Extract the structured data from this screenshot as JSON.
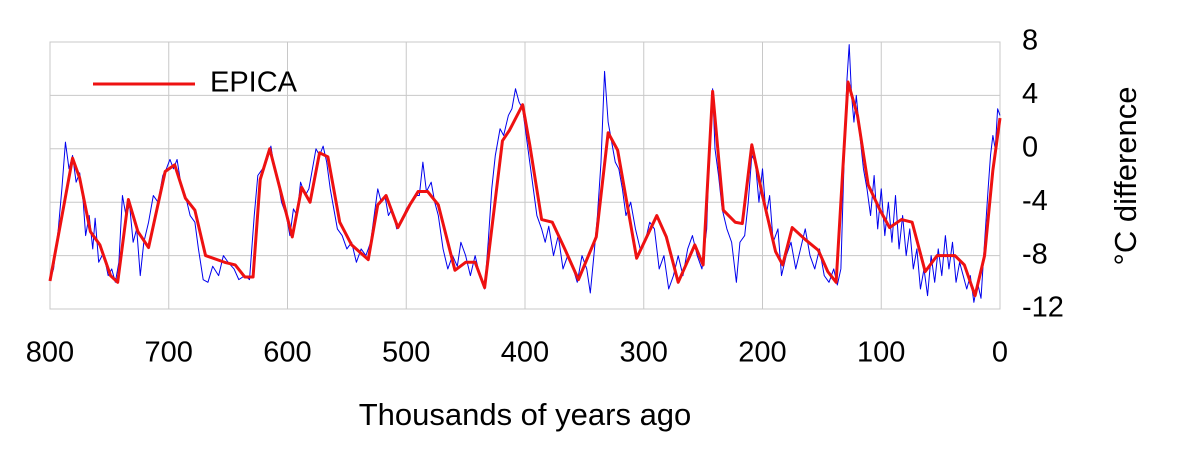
{
  "chart_data": {
    "type": "line",
    "xlabel": "Thousands of years ago",
    "ylabel": "°C difference",
    "xlim": [
      800,
      0
    ],
    "xticks": [
      800,
      700,
      600,
      500,
      400,
      300,
      200,
      100,
      0
    ],
    "ylim": [
      -12,
      8
    ],
    "yticks": [
      -12,
      -8,
      -4,
      0,
      4,
      8
    ],
    "grid": true,
    "legend": "upper left",
    "y_axis_side": "right",
    "series": [
      {
        "color": "#0000ee",
        "width": 1,
        "x": [
          800,
          797,
          793,
          790,
          787,
          784,
          781,
          778,
          775,
          772,
          770,
          767,
          764,
          762,
          759,
          755,
          751,
          748,
          745,
          742,
          739,
          736,
          733,
          730,
          727,
          724,
          721,
          717,
          713,
          709,
          705,
          702,
          699,
          696,
          693,
          690,
          686,
          682,
          678,
          675,
          671,
          667,
          663,
          658,
          654,
          650,
          645,
          641,
          636,
          632,
          628,
          625,
          621,
          617,
          614,
          611,
          608,
          605,
          601,
          598,
          595,
          592,
          589,
          585,
          582,
          579,
          576,
          573,
          570,
          567,
          564,
          561,
          558,
          554,
          550,
          546,
          542,
          538,
          534,
          530,
          527,
          524,
          521,
          518,
          515,
          512,
          508,
          504,
          500,
          496,
          492,
          489,
          486,
          483,
          479,
          476,
          473,
          469,
          465,
          461,
          457,
          454,
          450,
          446,
          442,
          438,
          434,
          431,
          428,
          425,
          421,
          418,
          414,
          411,
          408,
          405,
          402,
          399,
          396,
          393,
          390,
          386,
          383,
          380,
          376,
          372,
          368,
          364,
          360,
          356,
          352,
          348,
          345,
          342,
          339,
          336,
          333,
          330,
          327,
          324,
          321,
          318,
          315,
          311,
          307,
          303,
          299,
          295,
          291,
          287,
          283,
          279,
          275,
          271,
          267,
          263,
          259,
          255,
          251,
          247,
          244,
          242,
          240,
          237,
          234,
          230,
          226,
          222,
          219,
          215,
          212,
          209,
          206,
          203,
          200,
          197,
          194,
          191,
          187,
          184,
          180,
          176,
          172,
          168,
          164,
          160,
          156,
          152,
          148,
          144,
          140,
          137,
          134,
          131,
          129,
          127,
          125,
          123,
          121,
          118,
          115,
          112,
          109,
          106,
          103,
          100,
          97,
          94,
          91,
          88,
          85,
          82,
          79,
          76,
          73,
          70,
          67,
          64,
          61,
          58,
          55,
          52,
          49,
          46,
          43,
          40,
          37,
          34,
          31,
          28,
          25,
          22,
          19,
          16,
          13,
          10,
          8,
          6,
          4,
          2,
          0
        ],
        "values": [
          -9.8,
          -9,
          -6,
          -3,
          0.5,
          -1.5,
          -0.5,
          -2.5,
          -1.8,
          -4,
          -6.5,
          -5,
          -7.5,
          -5.2,
          -8.5,
          -7.8,
          -9.5,
          -9,
          -10,
          -8.5,
          -3.5,
          -5,
          -4.2,
          -7,
          -6,
          -9.5,
          -7,
          -5.5,
          -3.5,
          -4,
          -2,
          -1.5,
          -0.8,
          -1.5,
          -0.8,
          -2.5,
          -3.5,
          -5,
          -5.5,
          -7.5,
          -9.8,
          -10,
          -8.8,
          -9.5,
          -8,
          -8.5,
          -9,
          -9.8,
          -9.5,
          -9.8,
          -5,
          -2,
          -1.5,
          -0.8,
          0.2,
          -1.5,
          -2.5,
          -4,
          -5,
          -6.5,
          -4.5,
          -5,
          -2.5,
          -3.5,
          -3,
          -1.5,
          0,
          -0.5,
          0.2,
          -1,
          -3,
          -4.5,
          -6,
          -6.5,
          -7.5,
          -7,
          -8.5,
          -7.5,
          -8,
          -7,
          -5,
          -3,
          -4,
          -3.5,
          -5,
          -4.5,
          -6,
          -5.5,
          -4.5,
          -4,
          -3.5,
          -3.5,
          -1,
          -3.2,
          -2.5,
          -4,
          -5,
          -7.5,
          -9,
          -8,
          -8.8,
          -7,
          -8,
          -9.5,
          -8,
          -9.5,
          -10.5,
          -7,
          -3,
          -0.5,
          1.5,
          1,
          2.5,
          3,
          4.5,
          3.5,
          3,
          1,
          -1,
          -3,
          -5,
          -6,
          -7,
          -5.8,
          -8,
          -6.5,
          -9,
          -8,
          -8.8,
          -10,
          -8,
          -9,
          -10.8,
          -8,
          -5,
          -1,
          5.8,
          2,
          0.5,
          -1,
          -1.5,
          -3,
          -5,
          -4,
          -6,
          -7.5,
          -7,
          -5.5,
          -6,
          -9,
          -8,
          -10.5,
          -9.5,
          -8,
          -9.5,
          -7.5,
          -6.5,
          -8,
          -9,
          -6,
          2,
          4.5,
          0,
          -2,
          -4.5,
          -6,
          -7,
          -10,
          -7,
          -6.5,
          -4,
          -0.5,
          -1,
          -4,
          -1.5,
          -5,
          -3.5,
          -7,
          -6,
          -9.5,
          -8,
          -7,
          -9,
          -7.5,
          -6,
          -8,
          -9,
          -7.5,
          -9.5,
          -10,
          -9,
          -10.2,
          -9,
          0,
          5,
          7.8,
          4,
          2,
          4,
          1,
          -1.5,
          -3,
          -5,
          -2,
          -6,
          -3,
          -6.5,
          -4,
          -7,
          -3.5,
          -7.5,
          -5,
          -8,
          -6,
          -9,
          -7.5,
          -10.5,
          -9,
          -11,
          -8,
          -10,
          -7.5,
          -9.5,
          -6.5,
          -9,
          -7,
          -10,
          -8.5,
          -9.5,
          -10.5,
          -9.5,
          -11.5,
          -10,
          -11.2,
          -7,
          -3,
          -0.5,
          1,
          0,
          3,
          2.5
        ]
      },
      {
        "name": "EPICA",
        "color": "#ee1111",
        "width": 3,
        "x": [
          800,
          781,
          775,
          766,
          758,
          749,
          743,
          734,
          726,
          717,
          703,
          695,
          686,
          678,
          669,
          653,
          644,
          636,
          629,
          623,
          615,
          606,
          596,
          588,
          581,
          573,
          566,
          556,
          546,
          532,
          524,
          517,
          507,
          497,
          490,
          482,
          473,
          459,
          450,
          442,
          434,
          419,
          413,
          402,
          396,
          386,
          377,
          366,
          355,
          340,
          330,
          322,
          306,
          289,
          281,
          271,
          257,
          250,
          242,
          233,
          223,
          217,
          209,
          200,
          189,
          183,
          175,
          164,
          153,
          145,
          138,
          128,
          120,
          111,
          101,
          93,
          83,
          74,
          63,
          53,
          38,
          30,
          21,
          13,
          6,
          0
        ],
        "values": [
          -9.9,
          -0.7,
          -2.2,
          -6.2,
          -7.2,
          -9.5,
          -10,
          -3.8,
          -6.2,
          -7.4,
          -1.7,
          -1.2,
          -3.7,
          -4.6,
          -8,
          -8.5,
          -8.7,
          -9.6,
          -9.6,
          -2.3,
          0,
          -3.1,
          -6.6,
          -2.9,
          -4,
          -0.3,
          -0.6,
          -5.5,
          -7.2,
          -8.3,
          -4.2,
          -3.5,
          -5.9,
          -4.2,
          -3.2,
          -3.2,
          -4.2,
          -9.1,
          -8.5,
          -8.5,
          -10.4,
          0.6,
          1.4,
          3.3,
          0.3,
          -5.3,
          -5.5,
          -7.6,
          -9.8,
          -6.6,
          1.2,
          -0.1,
          -8.2,
          -5,
          -6.6,
          -10,
          -7.2,
          -8.7,
          4.3,
          -4.6,
          -5.5,
          -5.6,
          0.3,
          -3.5,
          -7.7,
          -8.7,
          -5.9,
          -6.8,
          -7.6,
          -9.2,
          -10,
          5,
          2.5,
          -2.7,
          -4.6,
          -5.9,
          -5.3,
          -5.5,
          -9.2,
          -8,
          -8,
          -8.7,
          -11,
          -8,
          -1.6,
          2.3
        ]
      }
    ]
  }
}
